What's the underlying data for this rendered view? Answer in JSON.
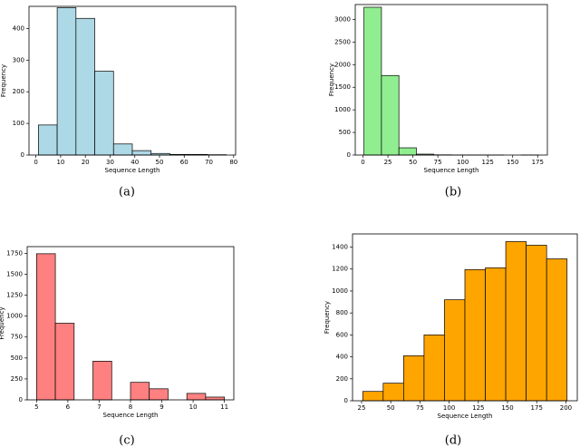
{
  "chart_data": [
    {
      "type": "histogram",
      "caption": "(a)",
      "xlabel": "Sequence Length",
      "ylabel": "Frequency",
      "color": "#add8e6",
      "bins": [
        1,
        8.6,
        16.2,
        23.8,
        31.4,
        39,
        46.6,
        54.2,
        61.8,
        69.4,
        77
      ],
      "values": [
        95,
        466,
        432,
        265,
        35,
        14,
        5,
        2,
        2,
        1
      ],
      "xlim": [
        -2.8,
        80.8
      ],
      "xticks": [
        0,
        10,
        20,
        30,
        40,
        50,
        60,
        70,
        80
      ],
      "ylim": [
        0,
        470
      ],
      "yticks": [
        0,
        100,
        200,
        300,
        400
      ]
    },
    {
      "type": "histogram",
      "caption": "(b)",
      "xlabel": "Sequence Length",
      "ylabel": "Frequency",
      "color": "#90ee90",
      "bins": [
        1,
        18.5,
        36,
        53.5,
        71,
        88.5,
        106,
        123.5,
        141,
        158.5,
        176
      ],
      "values": [
        3270,
        1760,
        160,
        20,
        5,
        2,
        1,
        1,
        0,
        1
      ],
      "xlim": [
        -7.75,
        184.75
      ],
      "xticks": [
        0,
        25,
        50,
        75,
        100,
        125,
        150,
        175
      ],
      "ylim": [
        0,
        3330
      ],
      "yticks": [
        0,
        500,
        1000,
        1500,
        2000,
        2500,
        3000
      ]
    },
    {
      "type": "histogram",
      "caption": "(c)",
      "xlabel": "Sequence Length",
      "ylabel": "Frequency",
      "color": "#ff8080",
      "bins": [
        5,
        5.6,
        6.2,
        6.8,
        7.4,
        8,
        8.6,
        9.2,
        9.8,
        10.4,
        11
      ],
      "values": [
        1745,
        915,
        0,
        462,
        0,
        209,
        132,
        0,
        77,
        33
      ],
      "xlim": [
        4.7,
        11.3
      ],
      "xticks": [
        5,
        6,
        7,
        8,
        9,
        10,
        11
      ],
      "ylim": [
        0,
        1830
      ],
      "yticks": [
        0,
        250,
        500,
        750,
        1000,
        1250,
        1500,
        1750
      ]
    },
    {
      "type": "histogram",
      "caption": "(d)",
      "xlabel": "Sequence Length",
      "ylabel": "Frequency",
      "color": "#ffa500",
      "bins": [
        26,
        43.5,
        61,
        78.5,
        96,
        113.5,
        131,
        148.5,
        166,
        183.5,
        201
      ],
      "values": [
        85,
        160,
        410,
        600,
        920,
        1195,
        1211,
        1450,
        1417,
        1293
      ],
      "xlim": [
        17.25,
        209.75
      ],
      "xticks": [
        25,
        50,
        75,
        100,
        125,
        150,
        175,
        200
      ],
      "ylim": [
        0,
        1520
      ],
      "yticks": [
        0,
        200,
        400,
        600,
        800,
        1000,
        1200,
        1400
      ]
    }
  ]
}
